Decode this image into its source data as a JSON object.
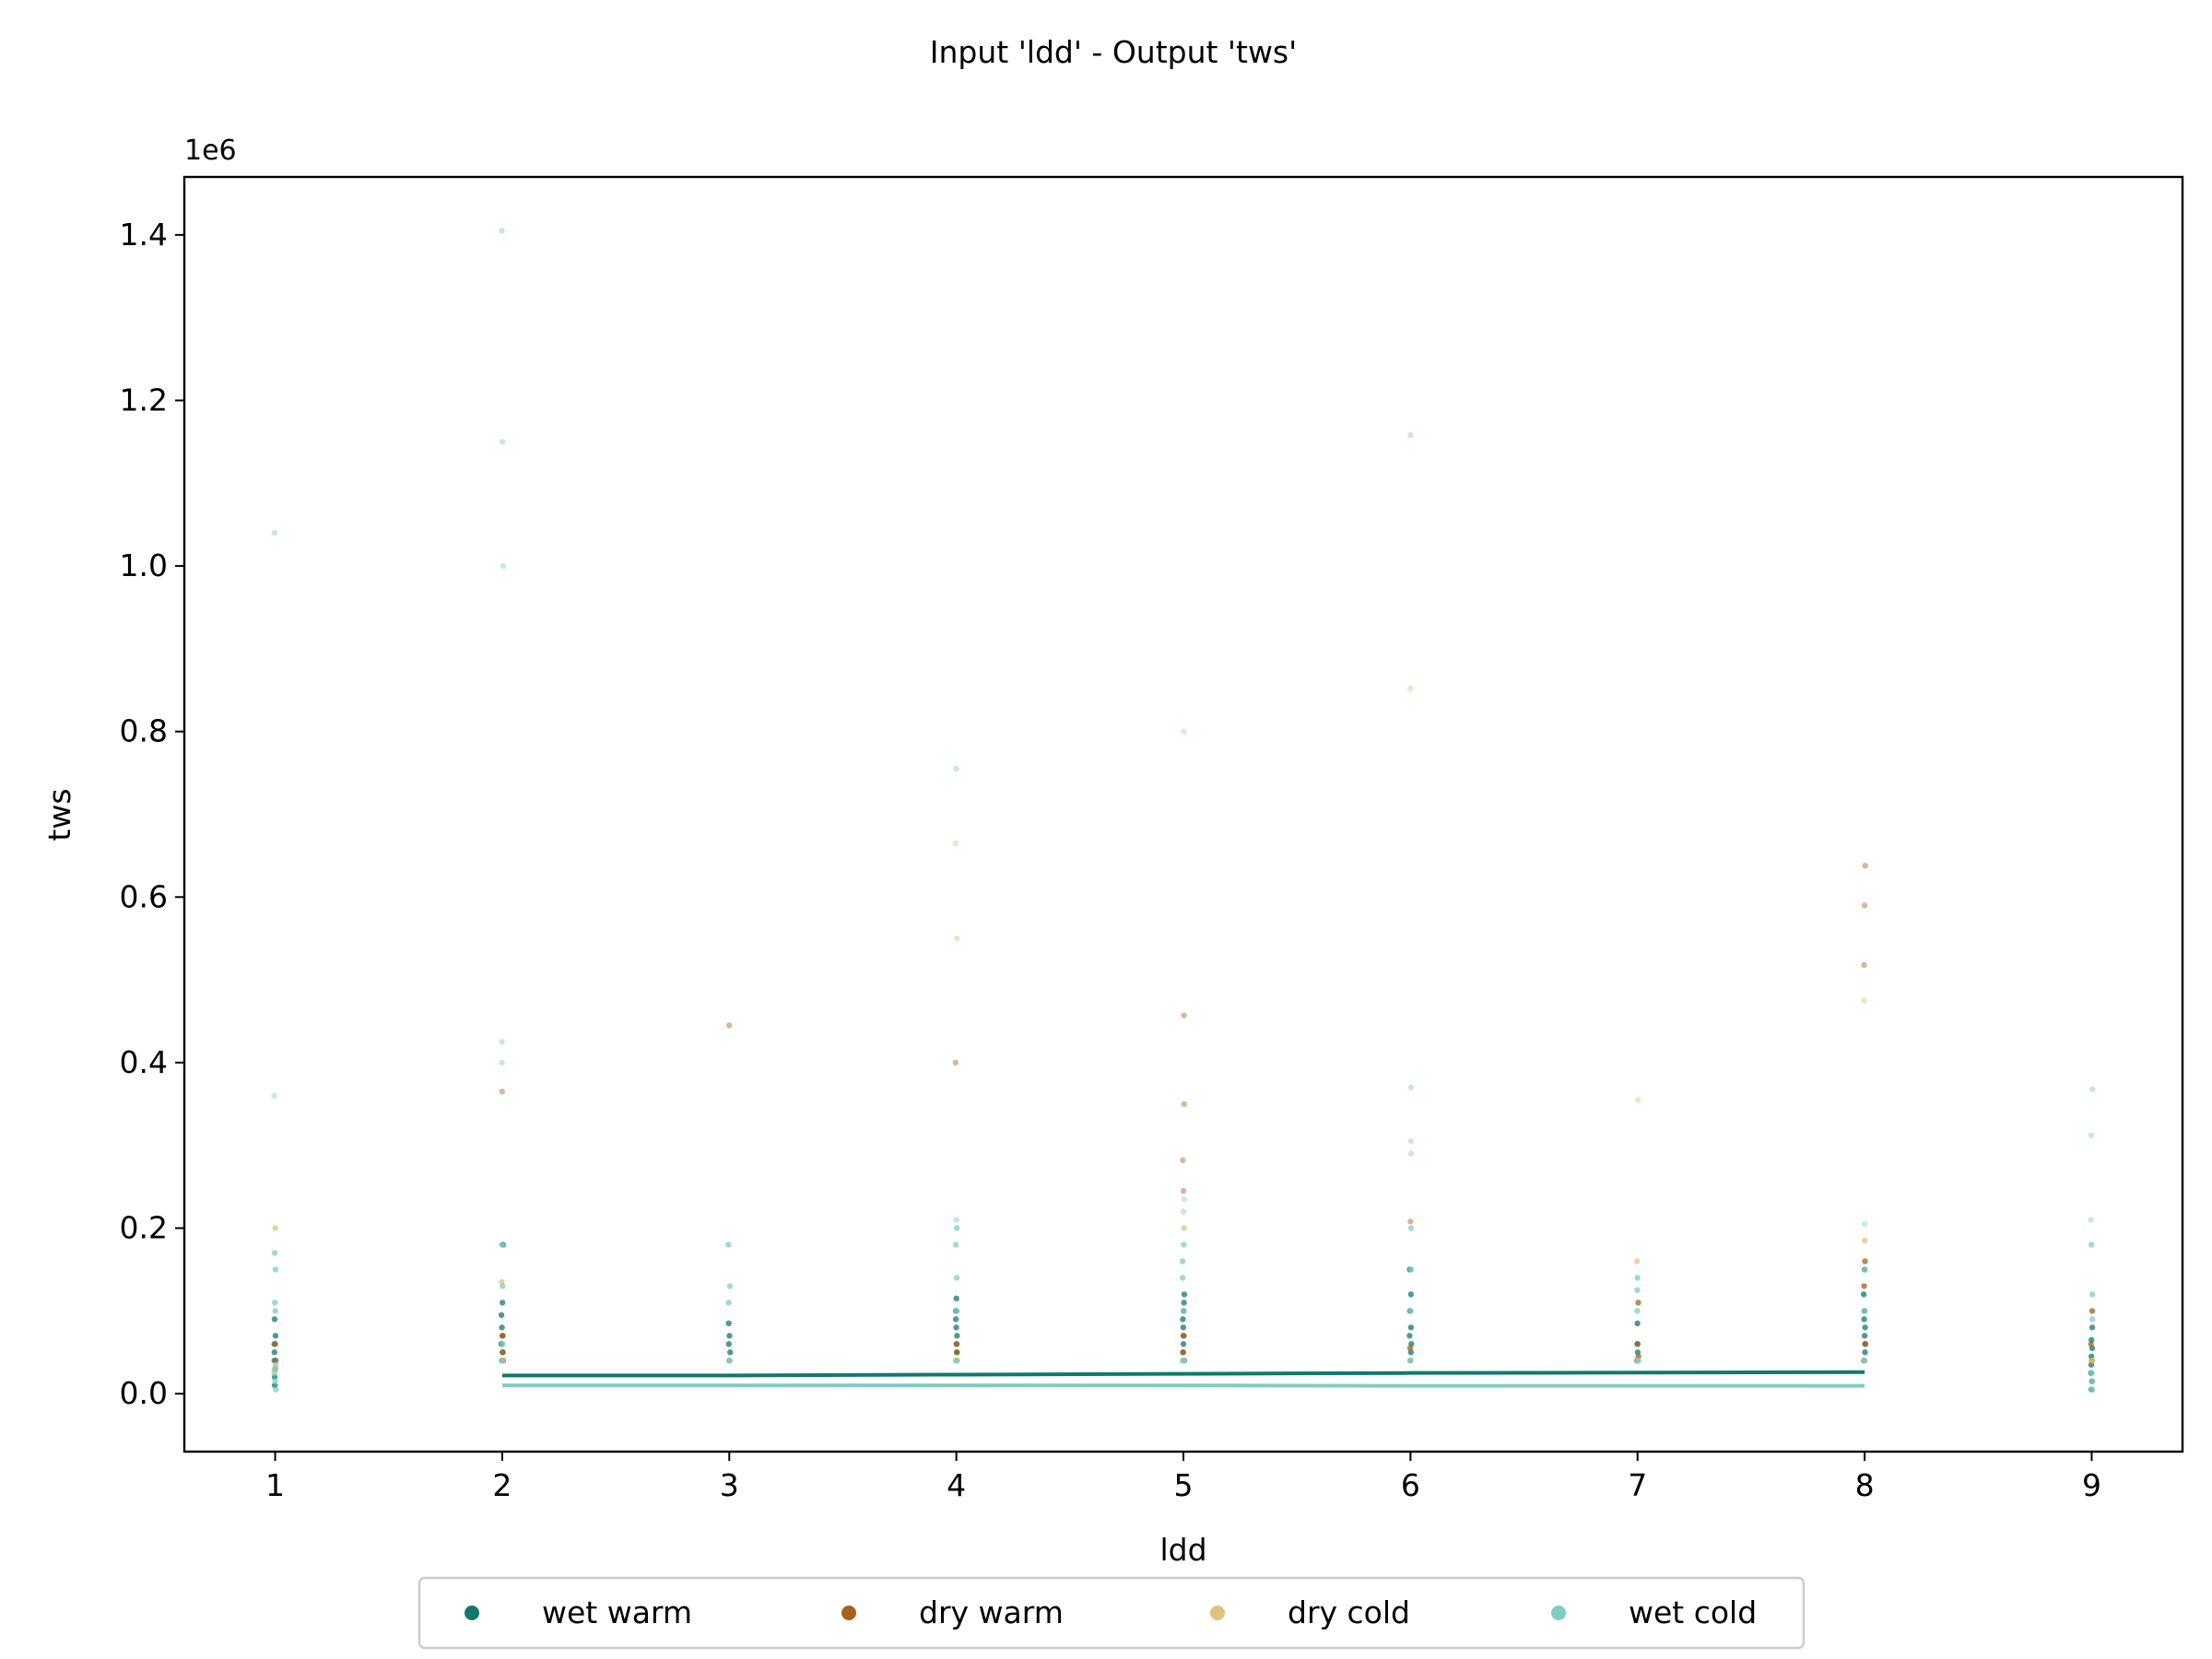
{
  "chart_data": {
    "type": "scatter",
    "title": "Input 'ldd' - Output 'tws'",
    "xlabel": "ldd",
    "ylabel": "tws",
    "y_offset_label": "1e6",
    "xlim": [
      0.6,
      9.4
    ],
    "ylim": [
      -70000,
      1470000
    ],
    "x_ticks": [
      1,
      2,
      3,
      4,
      5,
      6,
      7,
      8,
      9
    ],
    "y_ticks": [
      0,
      200000,
      400000,
      600000,
      800000,
      1000000,
      1200000,
      1400000
    ],
    "y_tick_labels": [
      "0.0",
      "0.2",
      "0.4",
      "0.6",
      "0.8",
      "1.0",
      "1.2",
      "1.4"
    ],
    "grid": false,
    "legend_position": "bottom-center",
    "series": [
      {
        "name": "wet warm",
        "color": "#10796c",
        "points": [
          [
            1,
            10000
          ],
          [
            1,
            20000
          ],
          [
            1,
            30000
          ],
          [
            1,
            40000
          ],
          [
            1,
            50000
          ],
          [
            1,
            60000
          ],
          [
            1,
            70000
          ],
          [
            1,
            90000
          ],
          [
            2,
            40000
          ],
          [
            2,
            50000
          ],
          [
            2,
            60000
          ],
          [
            2,
            70000
          ],
          [
            2,
            80000
          ],
          [
            2,
            95000
          ],
          [
            2,
            110000
          ],
          [
            2,
            180000
          ],
          [
            3,
            40000
          ],
          [
            3,
            50000
          ],
          [
            3,
            60000
          ],
          [
            3,
            70000
          ],
          [
            3,
            85000
          ],
          [
            4,
            40000
          ],
          [
            4,
            50000
          ],
          [
            4,
            60000
          ],
          [
            4,
            70000
          ],
          [
            4,
            80000
          ],
          [
            4,
            90000
          ],
          [
            4,
            100000
          ],
          [
            4,
            115000
          ],
          [
            5,
            40000
          ],
          [
            5,
            50000
          ],
          [
            5,
            60000
          ],
          [
            5,
            70000
          ],
          [
            5,
            80000
          ],
          [
            5,
            90000
          ],
          [
            5,
            100000
          ],
          [
            5,
            110000
          ],
          [
            5,
            120000
          ],
          [
            6,
            40000
          ],
          [
            6,
            50000
          ],
          [
            6,
            60000
          ],
          [
            6,
            70000
          ],
          [
            6,
            80000
          ],
          [
            6,
            100000
          ],
          [
            6,
            120000
          ],
          [
            6,
            150000
          ],
          [
            7,
            40000
          ],
          [
            7,
            50000
          ],
          [
            7,
            60000
          ],
          [
            7,
            85000
          ],
          [
            8,
            40000
          ],
          [
            8,
            50000
          ],
          [
            8,
            60000
          ],
          [
            8,
            70000
          ],
          [
            8,
            80000
          ],
          [
            8,
            90000
          ],
          [
            8,
            100000
          ],
          [
            8,
            120000
          ],
          [
            8,
            150000
          ],
          [
            9,
            5000
          ],
          [
            9,
            15000
          ],
          [
            9,
            25000
          ],
          [
            9,
            35000
          ],
          [
            9,
            45000
          ],
          [
            9,
            55000
          ],
          [
            9,
            65000
          ],
          [
            9,
            80000
          ]
        ],
        "trend": [
          [
            2,
            22000
          ],
          [
            3,
            22000
          ],
          [
            4,
            23000
          ],
          [
            5,
            24000
          ],
          [
            6,
            25000
          ],
          [
            7,
            25500
          ],
          [
            8,
            26000
          ]
        ]
      },
      {
        "name": "dry warm",
        "color": "#a6611a",
        "points": [
          [
            1,
            40000
          ],
          [
            1,
            60000
          ],
          [
            2,
            40000
          ],
          [
            2,
            50000
          ],
          [
            2,
            70000
          ],
          [
            2,
            365000
          ],
          [
            3,
            445000
          ],
          [
            4,
            50000
          ],
          [
            4,
            60000
          ],
          [
            4,
            400000
          ],
          [
            5,
            50000
          ],
          [
            5,
            70000
          ],
          [
            5,
            245000
          ],
          [
            5,
            282000
          ],
          [
            5,
            350000
          ],
          [
            5,
            457000
          ],
          [
            6,
            55000
          ],
          [
            6,
            208000
          ],
          [
            7,
            45000
          ],
          [
            7,
            60000
          ],
          [
            7,
            110000
          ],
          [
            8,
            40000
          ],
          [
            8,
            60000
          ],
          [
            8,
            130000
          ],
          [
            8,
            160000
          ],
          [
            8,
            518000
          ],
          [
            8,
            590000
          ],
          [
            8,
            638000
          ],
          [
            9,
            40000
          ],
          [
            9,
            60000
          ],
          [
            9,
            100000
          ]
        ]
      },
      {
        "name": "dry cold",
        "color": "#dfc27d",
        "points": [
          [
            1,
            30000
          ],
          [
            1,
            200000
          ],
          [
            2,
            40000
          ],
          [
            2,
            135000
          ],
          [
            3,
            40000
          ],
          [
            4,
            40000
          ],
          [
            4,
            550000
          ],
          [
            4,
            665000
          ],
          [
            5,
            40000
          ],
          [
            5,
            200000
          ],
          [
            5,
            800000
          ],
          [
            6,
            40000
          ],
          [
            6,
            852000
          ],
          [
            7,
            40000
          ],
          [
            7,
            160000
          ],
          [
            7,
            355000
          ],
          [
            8,
            40000
          ],
          [
            8,
            185000
          ],
          [
            8,
            475000
          ],
          [
            9,
            40000
          ]
        ]
      },
      {
        "name": "wet cold",
        "color": "#80cdc1",
        "points": [
          [
            1,
            5000
          ],
          [
            1,
            15000
          ],
          [
            1,
            25000
          ],
          [
            1,
            35000
          ],
          [
            1,
            100000
          ],
          [
            1,
            110000
          ],
          [
            1,
            150000
          ],
          [
            1,
            170000
          ],
          [
            1,
            360000
          ],
          [
            1,
            1040000
          ],
          [
            2,
            40000
          ],
          [
            2,
            60000
          ],
          [
            2,
            130000
          ],
          [
            2,
            180000
          ],
          [
            2,
            400000
          ],
          [
            2,
            425000
          ],
          [
            2,
            1000000
          ],
          [
            2,
            1150000
          ],
          [
            2,
            1405000
          ],
          [
            3,
            40000
          ],
          [
            3,
            110000
          ],
          [
            3,
            130000
          ],
          [
            3,
            180000
          ],
          [
            4,
            40000
          ],
          [
            4,
            100000
          ],
          [
            4,
            140000
          ],
          [
            4,
            180000
          ],
          [
            4,
            200000
          ],
          [
            4,
            210000
          ],
          [
            4,
            755000
          ],
          [
            5,
            40000
          ],
          [
            5,
            100000
          ],
          [
            5,
            140000
          ],
          [
            5,
            160000
          ],
          [
            5,
            180000
          ],
          [
            5,
            220000
          ],
          [
            5,
            235000
          ],
          [
            6,
            40000
          ],
          [
            6,
            100000
          ],
          [
            6,
            150000
          ],
          [
            6,
            200000
          ],
          [
            6,
            290000
          ],
          [
            6,
            305000
          ],
          [
            6,
            370000
          ],
          [
            6,
            1158000
          ],
          [
            7,
            40000
          ],
          [
            7,
            100000
          ],
          [
            7,
            125000
          ],
          [
            7,
            140000
          ],
          [
            8,
            40000
          ],
          [
            8,
            100000
          ],
          [
            8,
            150000
          ],
          [
            8,
            205000
          ],
          [
            9,
            5000
          ],
          [
            9,
            15000
          ],
          [
            9,
            25000
          ],
          [
            9,
            90000
          ],
          [
            9,
            120000
          ],
          [
            9,
            180000
          ],
          [
            9,
            210000
          ],
          [
            9,
            312000
          ],
          [
            9,
            368000
          ]
        ],
        "trend": [
          [
            2,
            10000
          ],
          [
            3,
            10000
          ],
          [
            4,
            10000
          ],
          [
            5,
            10000
          ],
          [
            6,
            9500
          ],
          [
            7,
            9500
          ],
          [
            8,
            9500
          ]
        ]
      }
    ]
  }
}
